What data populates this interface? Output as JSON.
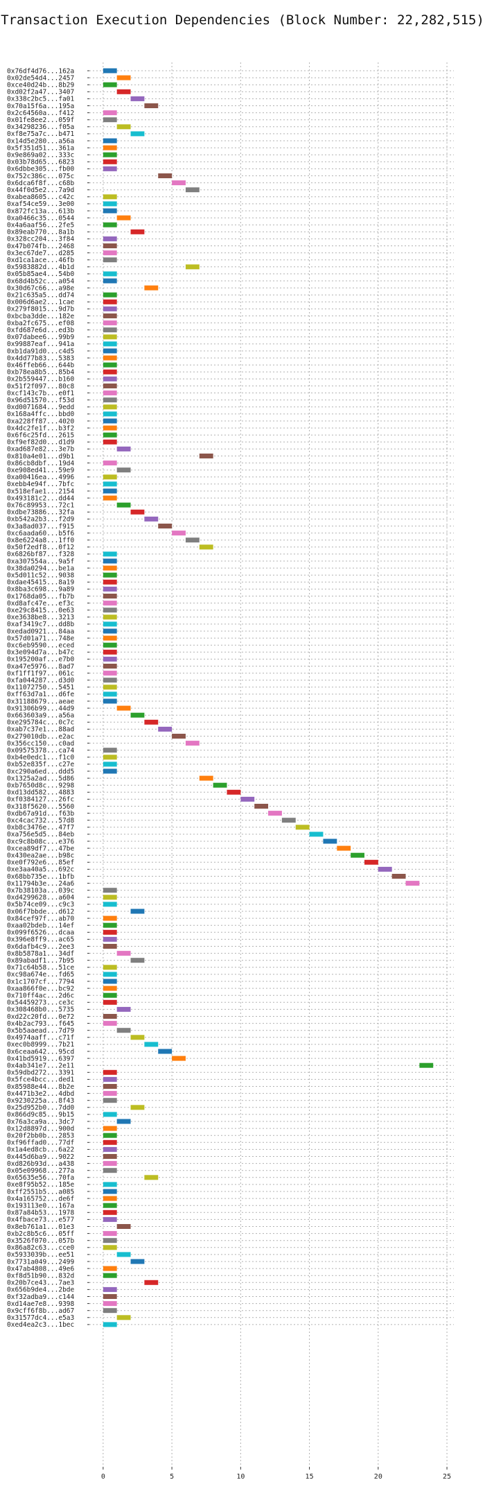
{
  "chart_data": {
    "type": "bar",
    "orientation": "horizontal",
    "title": "Transaction Execution Dependencies (Block Number: 22,282,515)",
    "xlabel": "",
    "ylabel": "",
    "xlim": [
      -1,
      25.5
    ],
    "xticks": [
      0,
      5,
      10,
      15,
      20,
      25
    ],
    "grid": true,
    "palette": [
      "#1f77b4",
      "#ff7f0e",
      "#2ca02c",
      "#d62728",
      "#9467bd",
      "#8c564b",
      "#e377c2",
      "#7f7f7f",
      "#bcbd22",
      "#17becf"
    ],
    "transactions": [
      "0x76df4d76...162a",
      "0x02de54d4...2457",
      "0xce40d24b...8b29",
      "0xd02f2a47...3407",
      "0x338c2bc5...fa01",
      "0x70a15f6a...195a",
      "0x2c64560a...f412",
      "0x01fe8ee2...059f",
      "0x34298236...f05a",
      "0xf8e75a7c...b471",
      "0x14d5e280...a56a",
      "0x5f351d51...361a",
      "0x9e869a02...333c",
      "0x03b78d65...6823",
      "0x6dbbe305...fb00",
      "0x752c386c...075c",
      "0x6dca6f8f...c68b",
      "0x44f0d5e2...7a9d",
      "0xabea8605...c42c",
      "0xaf54ce59...3e00",
      "0x872fc13a...613b",
      "0xa0466c35...0544",
      "0x4a6aaf56...2fe5",
      "0x89eab770...8a1b",
      "0x328cc204...3f84",
      "0x47b074fb...2468",
      "0x3ec67de7...d285",
      "0xd1ca1ace...46fb",
      "0x5983882d...4b1d",
      "0x05b85ae4...54b0",
      "0x68d4b52c...a054",
      "0x30d67c66...a98e",
      "0x21c635a5...dd74",
      "0x006d6ae2...1cae",
      "0x279f8015...9d7b",
      "0xbcba3dde...182e",
      "0xba2fc675...ef08",
      "0xfd687e6d...ed3b",
      "0x07dabee6...99b9",
      "0x99887eaf...941a",
      "0xb1da91d0...c4d5",
      "0x4dd77b83...5383",
      "0x46ffeb66...644b",
      "0xb78ea8b5...85b4",
      "0x2b559447...b160",
      "0x51f2f097...80c8",
      "0xcf143c7b...e0f1",
      "0x96d51570...f53d",
      "0xd0071684...9edd",
      "0x168a4ffc...bbd0",
      "0xa228ff87...4020",
      "0x4dc2fe1f...b3f2",
      "0x6f6c25fd...2615",
      "0xf9ef82d0...d1d9",
      "0xad687e82...3e7b",
      "0x810a4e01...d9b1",
      "0x86cb8dbf...19d4",
      "0xe908ed41...59e9",
      "0xa00416ea...4996",
      "0xebb4e94f...7bfc",
      "0x518efae1...2154",
      "0x493181c2...dd44",
      "0x76c89953...72c1",
      "0xdbe73886...32fa",
      "0xb542a2b3...f2d9",
      "0x3a8ad037...f915",
      "0xc6aada60...b5f6",
      "0x8e6224a8...1ff0",
      "0x50f2edf8...0f12",
      "0x6826bf87...f328",
      "0xa307554a...9a5f",
      "0x38da0294...be1a",
      "0x5d011c52...9038",
      "0xdae45415...8a19",
      "0x8ba3c698...9a89",
      "0x1768da05...fb7b",
      "0xd8afc47e...ef3c",
      "0xe29c8415...0e63",
      "0xe3638be8...3213",
      "0xaf3419c7...dd8b",
      "0xedad0921...84aa",
      "0x57d01a71...748e",
      "0xc6eb9590...eced",
      "0x3e094d7a...b47c",
      "0x195200af...e7b0",
      "0xa47e5976...8ad7",
      "0xf1ff1f97...061c",
      "0xfa044287...d3d0",
      "0x11072750...5451",
      "0xff63d7a1...d6fe",
      "0x31188679...aeae",
      "0x91306b99...44d9",
      "0x663603a9...a56a",
      "0xe295784c...0c7c",
      "0xab7c37e1...88ad",
      "0x279010db...e2ac",
      "0x356cc150...c0ad",
      "0x09575378...ca74",
      "0xb4e0edc1...f1c0",
      "0xb52e835f...c27e",
      "0xc290a6ed...ddd5",
      "0x1325a2ad...5d86",
      "0xb7650d8c...9298",
      "0xd13dd582...4883",
      "0xf0384127...26fc",
      "0x318f5620...5560",
      "0xdb67a91d...f63b",
      "0xc4cac732...57d8",
      "0xb8c3476e...47f7",
      "0xa756e5d5...84eb",
      "0xc9c8b08c...e376",
      "0xcea89df7...47be",
      "0x430ea2ae...b98c",
      "0xe0f792e6...85ef",
      "0xe3aa40a5...692c",
      "0x68bb735e...1bfb",
      "0x11794b3e...24a6",
      "0x7b38103a...039c",
      "0xd4299628...a604",
      "0x5b74ce09...c9c3",
      "0x06f7bbde...d612",
      "0x84cef97f...ab70",
      "0xaa02bdeb...14ef",
      "0x099f6526...dcaa",
      "0x396e8ff9...ac65",
      "0x6dafb4c9...2ee3",
      "0x8b5878a1...34df",
      "0x89abadf1...7b95",
      "0x71c64b58...51ce",
      "0xc98a674e...fd65",
      "0x1c1707cf...7794",
      "0xaa866f0e...bc92",
      "0x710ff4ac...2d6c",
      "0x54459273...ce3c",
      "0x308468b0...5735",
      "0xd22c20fd...0e72",
      "0x4b2ac793...f645",
      "0x5b5aaead...7d79",
      "0x4974aaff...c71f",
      "0xec0b8999...7b21",
      "0x6ceaa642...95cd",
      "0x41bd5919...6397",
      "0x4ab341e7...2e11",
      "0x59dbd272...3391",
      "0x5fce4bcc...ded1",
      "0x85988e44...8b2e",
      "0x4471b3e2...4dbd",
      "0x9230225a...8f43",
      "0x25d952b0...7dd0",
      "0x866d9c85...9b15",
      "0x76a3ca9a...3dc7",
      "0x12d8897d...900d",
      "0x20f2bb0b...2853",
      "0xf96ffad0...77df",
      "0x1a4ed8cb...6a22",
      "0x445d6ba9...9022",
      "0xd826b93d...a438",
      "0x05e09968...277a",
      "0x65635e56...70fa",
      "0xe8f95b52...185e",
      "0xff2551b5...a085",
      "0x4a165752...de6f",
      "0x193113e0...167a",
      "0x87a84b53...1978",
      "0x4fbace73...e577",
      "0x8eb761a1...01e3",
      "0xb2c8b5c6...05ff",
      "0x3526f070...057b",
      "0x86a82c63...cce0",
      "0x5933039b...ee51",
      "0x7731a049...2499",
      "0x47ab4808...49e6",
      "0xf8d51b90...832d",
      "0x20b7ce43...7ae3",
      "0x656b9de4...2bde",
      "0xf32adba9...c144",
      "0xd14ae7e8...9398",
      "0x9cff6f8b...ad67",
      "0x31577dc4...e5a3",
      "0xed4ea2c3...1bec"
    ],
    "start": [
      0,
      1,
      0,
      1,
      2,
      3,
      0,
      0,
      1,
      2,
      0,
      0,
      0,
      0,
      0,
      4,
      5,
      6,
      0,
      0,
      0,
      1,
      0,
      2,
      0,
      0,
      0,
      0,
      6,
      0,
      0,
      3,
      0,
      0,
      0,
      0,
      0,
      0,
      0,
      0,
      0,
      0,
      0,
      0,
      0,
      0,
      0,
      0,
      0,
      0,
      0,
      0,
      0,
      0,
      1,
      7,
      0,
      1,
      0,
      0,
      0,
      0,
      1,
      2,
      3,
      4,
      5,
      6,
      7,
      0,
      0,
      0,
      0,
      0,
      0,
      0,
      0,
      0,
      0,
      0,
      0,
      0,
      0,
      0,
      0,
      0,
      0,
      0,
      0,
      0,
      0,
      1,
      2,
      3,
      4,
      5,
      6,
      0,
      0,
      0,
      0,
      7,
      8,
      9,
      10,
      11,
      12,
      13,
      14,
      15,
      16,
      17,
      18,
      19,
      20,
      21,
      22,
      0,
      0,
      0,
      2,
      0,
      0,
      0,
      0,
      0,
      1,
      2,
      0,
      0,
      0,
      0,
      0,
      0,
      1,
      0,
      0,
      1,
      2,
      3,
      4,
      5,
      23,
      0,
      0,
      0,
      0,
      0,
      2,
      0,
      1,
      0,
      0,
      0,
      0,
      0,
      0,
      0,
      3,
      0,
      0,
      0,
      0,
      0,
      0,
      1,
      0,
      0,
      0,
      1,
      2,
      0,
      0,
      3,
      0,
      0,
      0,
      0,
      1,
      0
    ]
  }
}
